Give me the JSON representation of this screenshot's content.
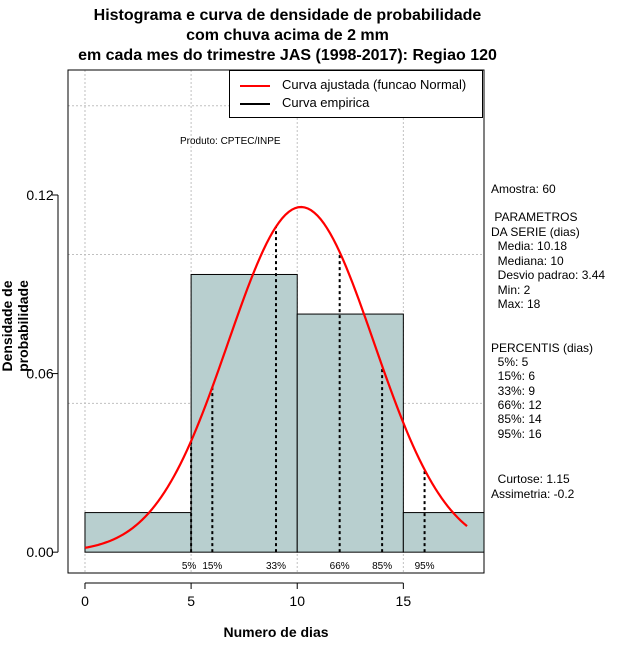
{
  "title_lines": [
    "Histograma e curva de densidade de probabilidade",
    "com chuva acima de 2 mm",
    "em cada mes do trimestre JAS (1998-2017): Regiao 120"
  ],
  "produto": "Produto: CPTEC/INPE",
  "legend": {
    "fitted": "Curva ajustada (funcao Normal)",
    "empirical": "Curva empirica",
    "fitted_color": "#ff0000",
    "empirical_color": "#000000"
  },
  "stats": {
    "amostra": "Amostra: 60",
    "parametros_title": " PARAMETROS",
    "parametros_sub": "DA SERIE (dias)",
    "media": "  Media: 10.18",
    "mediana": "  Mediana: 10",
    "desvio": "  Desvio padrao: 3.44",
    "min": "  Min: 2",
    "max": "  Max: 18",
    "percentis_title": "PERCENTIS (dias)",
    "p5": "  5%: 5",
    "p15": "  15%: 6",
    "p33": "  33%: 9",
    "p66": "  66%: 12",
    "p85": "  85%: 14",
    "p95": "  95%: 16",
    "curtose": "  Curtose: 1.15",
    "assimetria": "Assimetria: -0.2"
  },
  "chart_data": {
    "type": "bar",
    "title": "Histograma e curva de densidade de probabilidade com chuva acima de 2 mm em cada mes do trimestre JAS (1998-2017): Regiao 120",
    "xlabel": "Numero de dias",
    "ylabel": "Densidade de probabilidade",
    "xlim": [
      -0.8,
      18.8
    ],
    "ylim": [
      -0.007,
      0.162
    ],
    "x_ticks": [
      0,
      5,
      10,
      15
    ],
    "y_ticks": [
      0.0,
      0.06,
      0.12
    ],
    "y_tick_labels": [
      "0.00",
      "0.06",
      "0.12"
    ],
    "grid_x": [
      0,
      5,
      10,
      15
    ],
    "grid_y": [
      0.05,
      0.1,
      0.15
    ],
    "bars": [
      {
        "x0": 0,
        "x1": 5,
        "density": 0.0133
      },
      {
        "x0": 5,
        "x1": 10,
        "density": 0.0933
      },
      {
        "x0": 10,
        "x1": 15,
        "density": 0.08
      },
      {
        "x0": 15,
        "x1": 18.8,
        "density": 0.0133
      }
    ],
    "bar_color": "#b8cfcf",
    "normal_curve": {
      "mean": 10.18,
      "sd": 3.44,
      "x_from": 0,
      "x_to": 18,
      "color": "#ff0000"
    },
    "percentiles": [
      {
        "label": "5%",
        "x": 5
      },
      {
        "label": "15%",
        "x": 6
      },
      {
        "label": "33%",
        "x": 9
      },
      {
        "label": "66%",
        "x": 12
      },
      {
        "label": "85%",
        "x": 14
      },
      {
        "label": "95%",
        "x": 16
      }
    ]
  }
}
